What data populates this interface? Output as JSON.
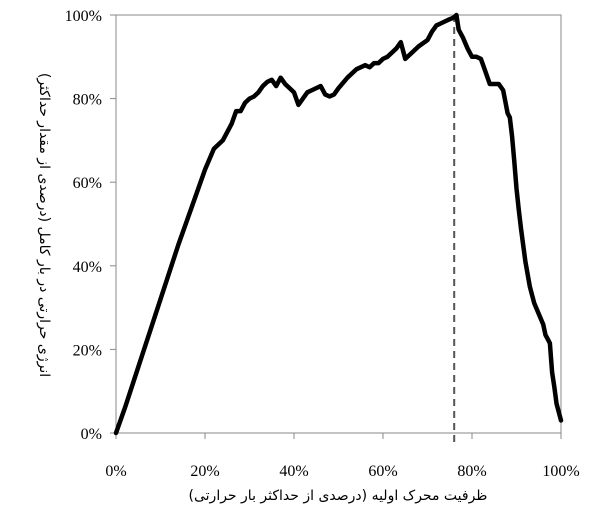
{
  "chart_data": {
    "type": "line",
    "title": "",
    "xlabel": "ظرفیت محرک اولیه (درصدی از حداکثر بار حرارتی)",
    "ylabel": "انرژی حرارتی در بار کامل (درصدی از مقدار حداکثر)",
    "xlim": [
      0,
      100
    ],
    "ylim": [
      0,
      100
    ],
    "x_ticks": [
      "0%",
      "20%",
      "40%",
      "60%",
      "80%",
      "100%"
    ],
    "y_ticks": [
      "0%",
      "20%",
      "40%",
      "60%",
      "80%",
      "100%"
    ],
    "grid": false,
    "legend": "none",
    "series_color": "#000000",
    "reference_line": {
      "x": 76,
      "style": "dashed",
      "color": "#555555"
    },
    "series": [
      {
        "x": [
          0,
          2,
          4,
          6,
          8,
          10,
          12,
          14,
          16,
          18,
          20,
          22,
          24,
          25,
          26,
          27,
          28,
          29,
          30,
          31,
          32,
          33,
          34,
          35,
          36,
          37,
          38,
          39,
          40,
          41,
          42,
          43,
          44,
          45,
          46,
          47,
          48,
          49,
          50,
          52,
          54,
          56,
          57,
          58,
          59,
          60,
          61,
          62,
          63,
          64,
          65,
          66,
          68,
          70,
          71,
          72,
          73,
          74,
          75,
          75.5,
          76,
          76.5,
          77,
          78,
          79,
          80,
          81,
          82,
          83,
          84,
          85,
          86,
          87,
          88,
          88.5,
          89,
          89.5,
          90,
          90.5,
          91,
          91.5,
          92,
          93,
          94,
          95,
          96,
          96.5,
          97,
          97.5,
          98,
          98.5,
          99,
          99.5,
          100
        ],
        "y": [
          0,
          6,
          12.5,
          19,
          25.5,
          32,
          38.5,
          45,
          51,
          57,
          63,
          68,
          70,
          72,
          74,
          77,
          77,
          79,
          80,
          80.5,
          81.5,
          83,
          84,
          84.5,
          83,
          85,
          83.5,
          82.5,
          81.5,
          78.5,
          80,
          81.5,
          82,
          82.5,
          83,
          81,
          80.5,
          81,
          82.5,
          85,
          87,
          88,
          87.5,
          88.5,
          88.5,
          89.5,
          90,
          91,
          92,
          93.5,
          89.5,
          90.5,
          92.5,
          94,
          96,
          97.5,
          98,
          98.5,
          99,
          99.2,
          99.5,
          100,
          96.5,
          94.5,
          92,
          90,
          90,
          89.5,
          86.5,
          83.5,
          83.5,
          83.5,
          82,
          76.5,
          75.5,
          71,
          65,
          58.5,
          53.5,
          49,
          45,
          41,
          35,
          31,
          28.5,
          26,
          23.5,
          22.5,
          21.5,
          14.5,
          11,
          7,
          5,
          3
        ]
      }
    ]
  }
}
